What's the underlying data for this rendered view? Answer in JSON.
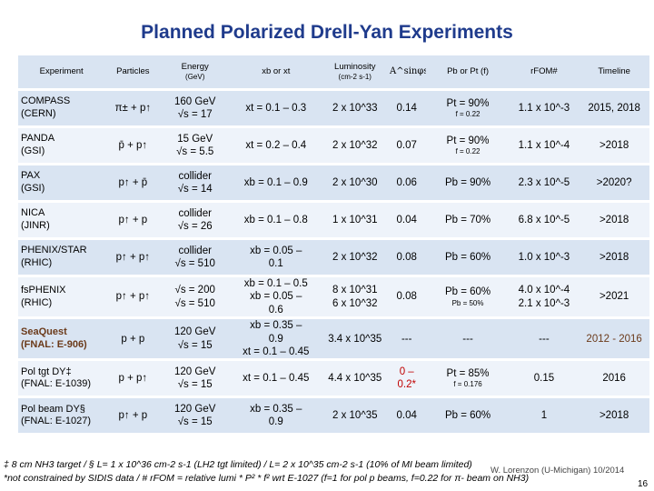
{
  "title": "Planned Polarized Drell-Yan Experiments",
  "headers": {
    "experiment": "Experiment",
    "particles": "Particles",
    "energy": "Energy",
    "energy_unit": "(GeV)",
    "xbxt": "xb or xt",
    "luminosity": "Luminosity",
    "luminosity_unit": "(cm-2 s-1)",
    "asym": "A^sinφs",
    "pol": "Pb or Pt (f)",
    "rfom": "rFOM#",
    "timeline": "Timeline"
  },
  "rows": [
    {
      "exp": "COMPASS",
      "lab": "(CERN)",
      "particles": "π± + p↑",
      "energy1": "160 GeV",
      "energy2": "√s = 17",
      "x1": "xt = 0.1 – 0.3",
      "x2": "",
      "x3": "",
      "lumi1": "2 x 10^33",
      "lumi2": "",
      "asym": "0.14",
      "pol1": "Pt = 90%",
      "pol2": "f = 0.22",
      "rfom1": "1.1 x 10^-3",
      "rfom2": "",
      "timeline": "2015, 2018"
    },
    {
      "exp": "PANDA",
      "lab": "(GSI)",
      "particles": "p̄ + p↑",
      "energy1": "15 GeV",
      "energy2": "√s = 5.5",
      "x1": "xt = 0.2 – 0.4",
      "x2": "",
      "x3": "",
      "lumi1": "2 x 10^32",
      "lumi2": "",
      "asym": "0.07",
      "pol1": "Pt = 90%",
      "pol2": "f = 0.22",
      "rfom1": "1.1 x 10^-4",
      "rfom2": "",
      "timeline": ">2018"
    },
    {
      "exp": "PAX",
      "lab": "(GSI)",
      "particles": "p↑ + p̄",
      "energy1": "collider",
      "energy2": "√s = 14",
      "x1": "xb = 0.1 – 0.9",
      "x2": "",
      "x3": "",
      "lumi1": "2 x 10^30",
      "lumi2": "",
      "asym": "0.06",
      "pol1": "Pb = 90%",
      "pol2": "",
      "rfom1": "2.3 x 10^-5",
      "rfom2": "",
      "timeline": ">2020?"
    },
    {
      "exp": "NICA",
      "lab": "(JINR)",
      "particles": "p↑ + p",
      "energy1": "collider",
      "energy2": "√s = 26",
      "x1": "xb = 0.1 – 0.8",
      "x2": "",
      "x3": "",
      "lumi1": "1 x 10^31",
      "lumi2": "",
      "asym": "0.04",
      "pol1": "Pb = 70%",
      "pol2": "",
      "rfom1": "6.8 x 10^-5",
      "rfom2": "",
      "timeline": ">2018"
    },
    {
      "exp": "PHENIX/STAR",
      "lab": "(RHIC)",
      "particles": "p↑ + p↑",
      "energy1": "collider",
      "energy2": "√s = 510",
      "x1": "xb = 0.05 –",
      "x2": "0.1",
      "x3": "",
      "lumi1": "2 x 10^32",
      "lumi2": "",
      "asym": "0.08",
      "pol1": "Pb = 60%",
      "pol2": "",
      "rfom1": "1.0 x 10^-3",
      "rfom2": "",
      "timeline": ">2018"
    },
    {
      "exp": "fsPHENIX",
      "lab": "(RHIC)",
      "particles": "p↑ + p↑",
      "energy1": "√s = 200",
      "energy2": "√s = 510",
      "x1": "xb = 0.1 – 0.5",
      "x2": "xb = 0.05 –",
      "x3": "0.6",
      "lumi1": "8 x 10^31",
      "lumi2": "6 x 10^32",
      "asym": "0.08",
      "pol1": "Pb = 60%",
      "pol2": "Pb = 50%",
      "rfom1": "4.0 x 10^-4",
      "rfom2": "2.1 x 10^-3",
      "timeline": ">2021"
    },
    {
      "exp": "SeaQuest",
      "lab": "(FNAL: E-906)",
      "particles": "p + p",
      "energy1": "120 GeV",
      "energy2": "√s = 15",
      "x1": "xb = 0.35 –",
      "x2": "0.9",
      "x3": "xt = 0.1 – 0.45",
      "lumi1": "3.4 x 10^35",
      "lumi2": "",
      "asym": "---",
      "pol1": "---",
      "pol2": "",
      "rfom1": "---",
      "rfom2": "",
      "timeline": "2012 - 2016"
    },
    {
      "exp": "Pol tgt DY‡",
      "lab": "(FNAL: E-1039)",
      "particles": "p + p↑",
      "energy1": "120 GeV",
      "energy2": "√s = 15",
      "x1": "xt = 0.1 – 0.45",
      "x2": "",
      "x3": "",
      "lumi1": "4.4 x 10^35",
      "lumi2": "",
      "asym": "0 –",
      "asym2": "0.2*",
      "pol1": "Pt = 85%",
      "pol2": "f = 0.176",
      "rfom1": "0.15",
      "rfom2": "",
      "timeline": "2016"
    },
    {
      "exp": "Pol beam DY§",
      "lab": "(FNAL: E-1027)",
      "particles": "p↑ + p",
      "energy1": "120 GeV",
      "energy2": "√s = 15",
      "x1": "xb = 0.35 –",
      "x2": "0.9",
      "x3": "",
      "lumi1": "2 x 10^35",
      "lumi2": "",
      "asym": "0.04",
      "pol1": "Pb = 60%",
      "pol2": "",
      "rfom1": "1",
      "rfom2": "",
      "timeline": ">2018"
    }
  ],
  "footnote1": "‡ 8 cm NH3 target   /   § L= 1 x 10^36 cm-2 s-1 (LH2 tgt limited)  /  L= 2 x 10^35 cm-2 s-1 (10% of MI beam limited)",
  "footnote2": "*not constrained by SIDIS data   /   # rFOM = relative lumi * P² * f² wrt E-1027 (f=1 for pol p beams, f=0.22 for π- beam on NH3)",
  "author": "W. Lorenzon (U-Michigan)    10/2014",
  "page_number": "16",
  "colors": {
    "title": "#1f3b8c",
    "row_dark": "#d9e4f2",
    "row_light": "#eef3fa",
    "highlight_red": "#c00000",
    "highlight_brown": "#6b3a1a"
  }
}
